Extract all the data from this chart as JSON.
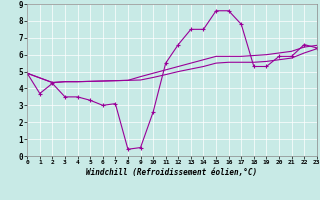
{
  "xlabel": "Windchill (Refroidissement éolien,°C)",
  "bg_color": "#c8eae6",
  "line_color": "#990099",
  "xmin": 0,
  "xmax": 23,
  "ymin": 0,
  "ymax": 9,
  "xticks": [
    0,
    1,
    2,
    3,
    4,
    5,
    6,
    7,
    8,
    9,
    10,
    11,
    12,
    13,
    14,
    15,
    16,
    17,
    18,
    19,
    20,
    21,
    22,
    23
  ],
  "yticks": [
    0,
    1,
    2,
    3,
    4,
    5,
    6,
    7,
    8,
    9
  ],
  "line1_x": [
    0,
    1,
    2,
    3,
    4,
    5,
    6,
    7,
    8,
    9,
    10,
    11,
    12,
    13,
    14,
    15,
    16,
    17,
    18,
    19,
    20,
    21,
    22,
    23
  ],
  "line1_y": [
    4.9,
    3.7,
    4.3,
    3.5,
    3.5,
    3.3,
    3.0,
    3.1,
    0.4,
    0.5,
    2.6,
    5.5,
    6.6,
    7.5,
    7.5,
    8.6,
    8.6,
    7.8,
    5.3,
    5.3,
    5.9,
    5.9,
    6.6,
    6.4
  ],
  "line2_x": [
    0,
    2,
    3,
    4,
    5,
    6,
    7,
    8,
    9,
    10,
    11,
    12,
    13,
    14,
    15,
    16,
    17,
    18,
    19,
    20,
    21,
    22,
    23
  ],
  "line2_y": [
    4.9,
    4.35,
    4.4,
    4.4,
    4.42,
    4.44,
    4.46,
    4.48,
    4.5,
    4.65,
    4.82,
    5.0,
    5.15,
    5.3,
    5.5,
    5.55,
    5.55,
    5.55,
    5.6,
    5.7,
    5.8,
    6.1,
    6.35
  ],
  "line3_x": [
    0,
    2,
    3,
    4,
    5,
    6,
    7,
    8,
    9,
    10,
    11,
    12,
    13,
    14,
    15,
    16,
    17,
    18,
    19,
    20,
    21,
    22,
    23
  ],
  "line3_y": [
    4.9,
    4.35,
    4.4,
    4.4,
    4.42,
    4.44,
    4.46,
    4.48,
    4.7,
    4.9,
    5.1,
    5.3,
    5.5,
    5.7,
    5.9,
    5.9,
    5.9,
    5.95,
    6.0,
    6.1,
    6.2,
    6.45,
    6.55
  ]
}
